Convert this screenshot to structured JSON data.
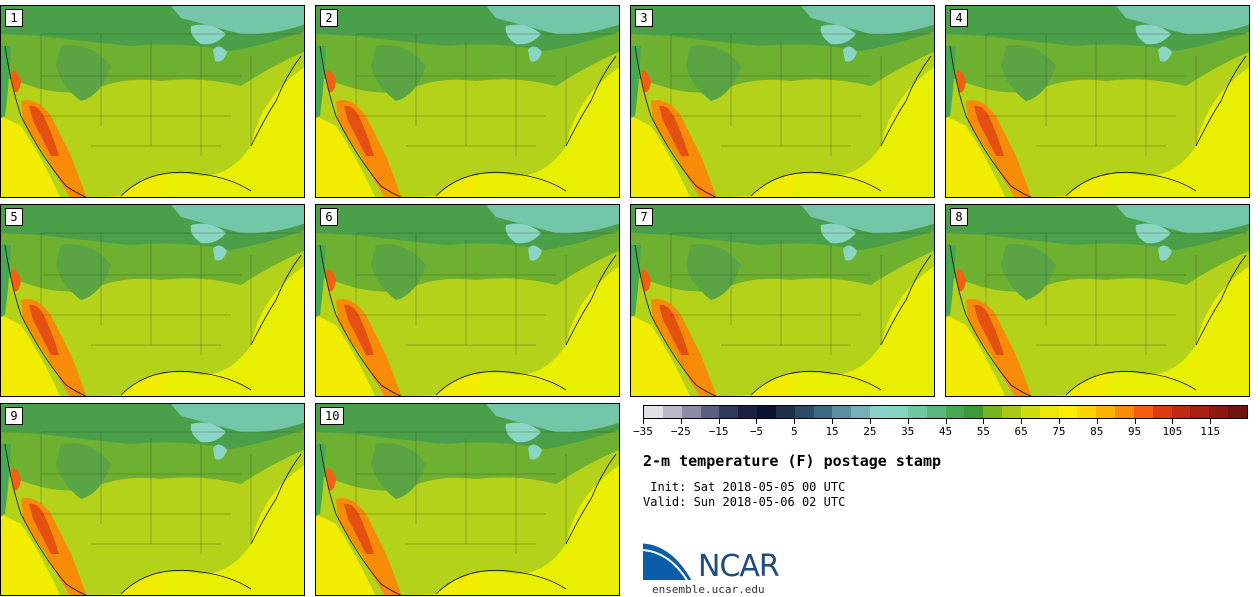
{
  "panels": [
    {
      "label": "1"
    },
    {
      "label": "2"
    },
    {
      "label": "3"
    },
    {
      "label": "4"
    },
    {
      "label": "5"
    },
    {
      "label": "6"
    },
    {
      "label": "7"
    },
    {
      "label": "8"
    },
    {
      "label": "9"
    },
    {
      "label": "10"
    }
  ],
  "legend": {
    "ticks": [
      "-35",
      "-25",
      "-15",
      "-5",
      "5",
      "15",
      "25",
      "35",
      "45",
      "55",
      "65",
      "75",
      "85",
      "95",
      "105",
      "115"
    ],
    "colors": [
      "#e0e0e6",
      "#b8b8c8",
      "#8c8ca6",
      "#5c6080",
      "#303a5c",
      "#1a2240",
      "#0a1430",
      "#1e3048",
      "#2c4a66",
      "#3c6a82",
      "#5a8ea0",
      "#76b0b8",
      "#88d4cc",
      "#84d6c0",
      "#6cc8a0",
      "#58b880",
      "#46a850",
      "#3c9a38",
      "#76b41e",
      "#a8c814",
      "#d0dc10",
      "#eee808",
      "#fcf000",
      "#fcd400",
      "#fcb400",
      "#f88c08",
      "#f46010",
      "#dc3c10",
      "#c02810",
      "#a81e10",
      "#8c1810",
      "#701410"
    ]
  },
  "title": "2-m temperature (F) postage stamp",
  "init": " Init: Sat 2018-05-05 00 UTC",
  "valid": "Valid: Sun 2018-05-06 02 UTC",
  "logo": {
    "text": "NCAR",
    "site": "ensemble.ucar.edu"
  }
}
